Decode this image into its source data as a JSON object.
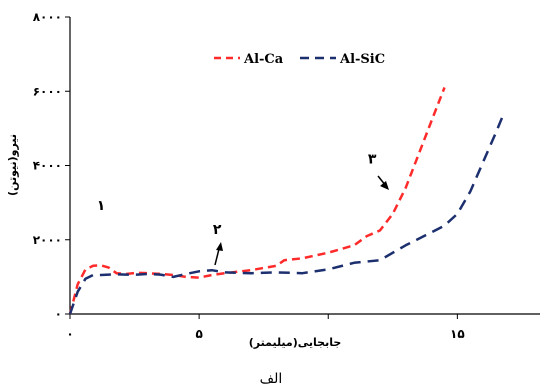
{
  "chart_data": {
    "type": "line",
    "xlabel": "جابجایی(میلیمتر)",
    "ylabel": "نیرو(نیوتن)",
    "caption": "الف",
    "xlim": [
      0,
      18.2
    ],
    "ylim": [
      0,
      8000
    ],
    "xticks": [
      0,
      5,
      10,
      15
    ],
    "xtick_labels": [
      "۰",
      "۵",
      "",
      "۱۵"
    ],
    "yticks": [
      0,
      2000,
      4000,
      6000,
      8000
    ],
    "ytick_labels": [
      "۰",
      "۲۰۰۰",
      "۴۰۰۰",
      "۶۰۰۰",
      "۸۰۰۰"
    ],
    "grid": false,
    "legend_position": "top-right",
    "series": [
      {
        "name": "Al-Ca",
        "color": "#ff2a2a",
        "dash": "dashed",
        "x": [
          0,
          0.3,
          0.6,
          0.9,
          1.2,
          1.5,
          1.8,
          2.2,
          2.6,
          3.0,
          3.5,
          4.0,
          4.5,
          5.0,
          5.5,
          6.0,
          7.0,
          8.0,
          8.3,
          9.0,
          10.0,
          11.0,
          11.5,
          12.0,
          12.5,
          13.0,
          13.5,
          14.0,
          14.5
        ],
        "y": [
          0,
          800,
          1200,
          1300,
          1310,
          1250,
          1100,
          1080,
          1110,
          1100,
          1080,
          1050,
          1000,
          980,
          1050,
          1100,
          1180,
          1300,
          1450,
          1500,
          1650,
          1850,
          2100,
          2250,
          2700,
          3400,
          4300,
          5200,
          6100
        ]
      },
      {
        "name": "Al-SiC",
        "color": "#1c2f6e",
        "dash": "dashed",
        "x": [
          0,
          0.3,
          0.6,
          0.9,
          1.2,
          1.5,
          1.8,
          2.2,
          2.6,
          3.0,
          3.5,
          4.0,
          4.5,
          5.0,
          5.5,
          6.0,
          7.0,
          8.0,
          9.0,
          10.0,
          11.0,
          12.0,
          13.0,
          14.0,
          14.5,
          15.0,
          15.5,
          16.0,
          16.5,
          16.8
        ],
        "y": [
          0,
          600,
          950,
          1050,
          1050,
          1060,
          1070,
          1060,
          1060,
          1080,
          1060,
          1000,
          1080,
          1150,
          1180,
          1120,
          1100,
          1120,
          1100,
          1200,
          1380,
          1450,
          1850,
          2200,
          2380,
          2700,
          3300,
          4100,
          4900,
          5400
        ]
      }
    ],
    "annotations": [
      {
        "label": "۱",
        "x": 1.2,
        "y": 2800
      },
      {
        "label": "۲",
        "x": 5.7,
        "y": 2150
      },
      {
        "label": "۳",
        "x": 11.7,
        "y": 4050
      }
    ]
  }
}
